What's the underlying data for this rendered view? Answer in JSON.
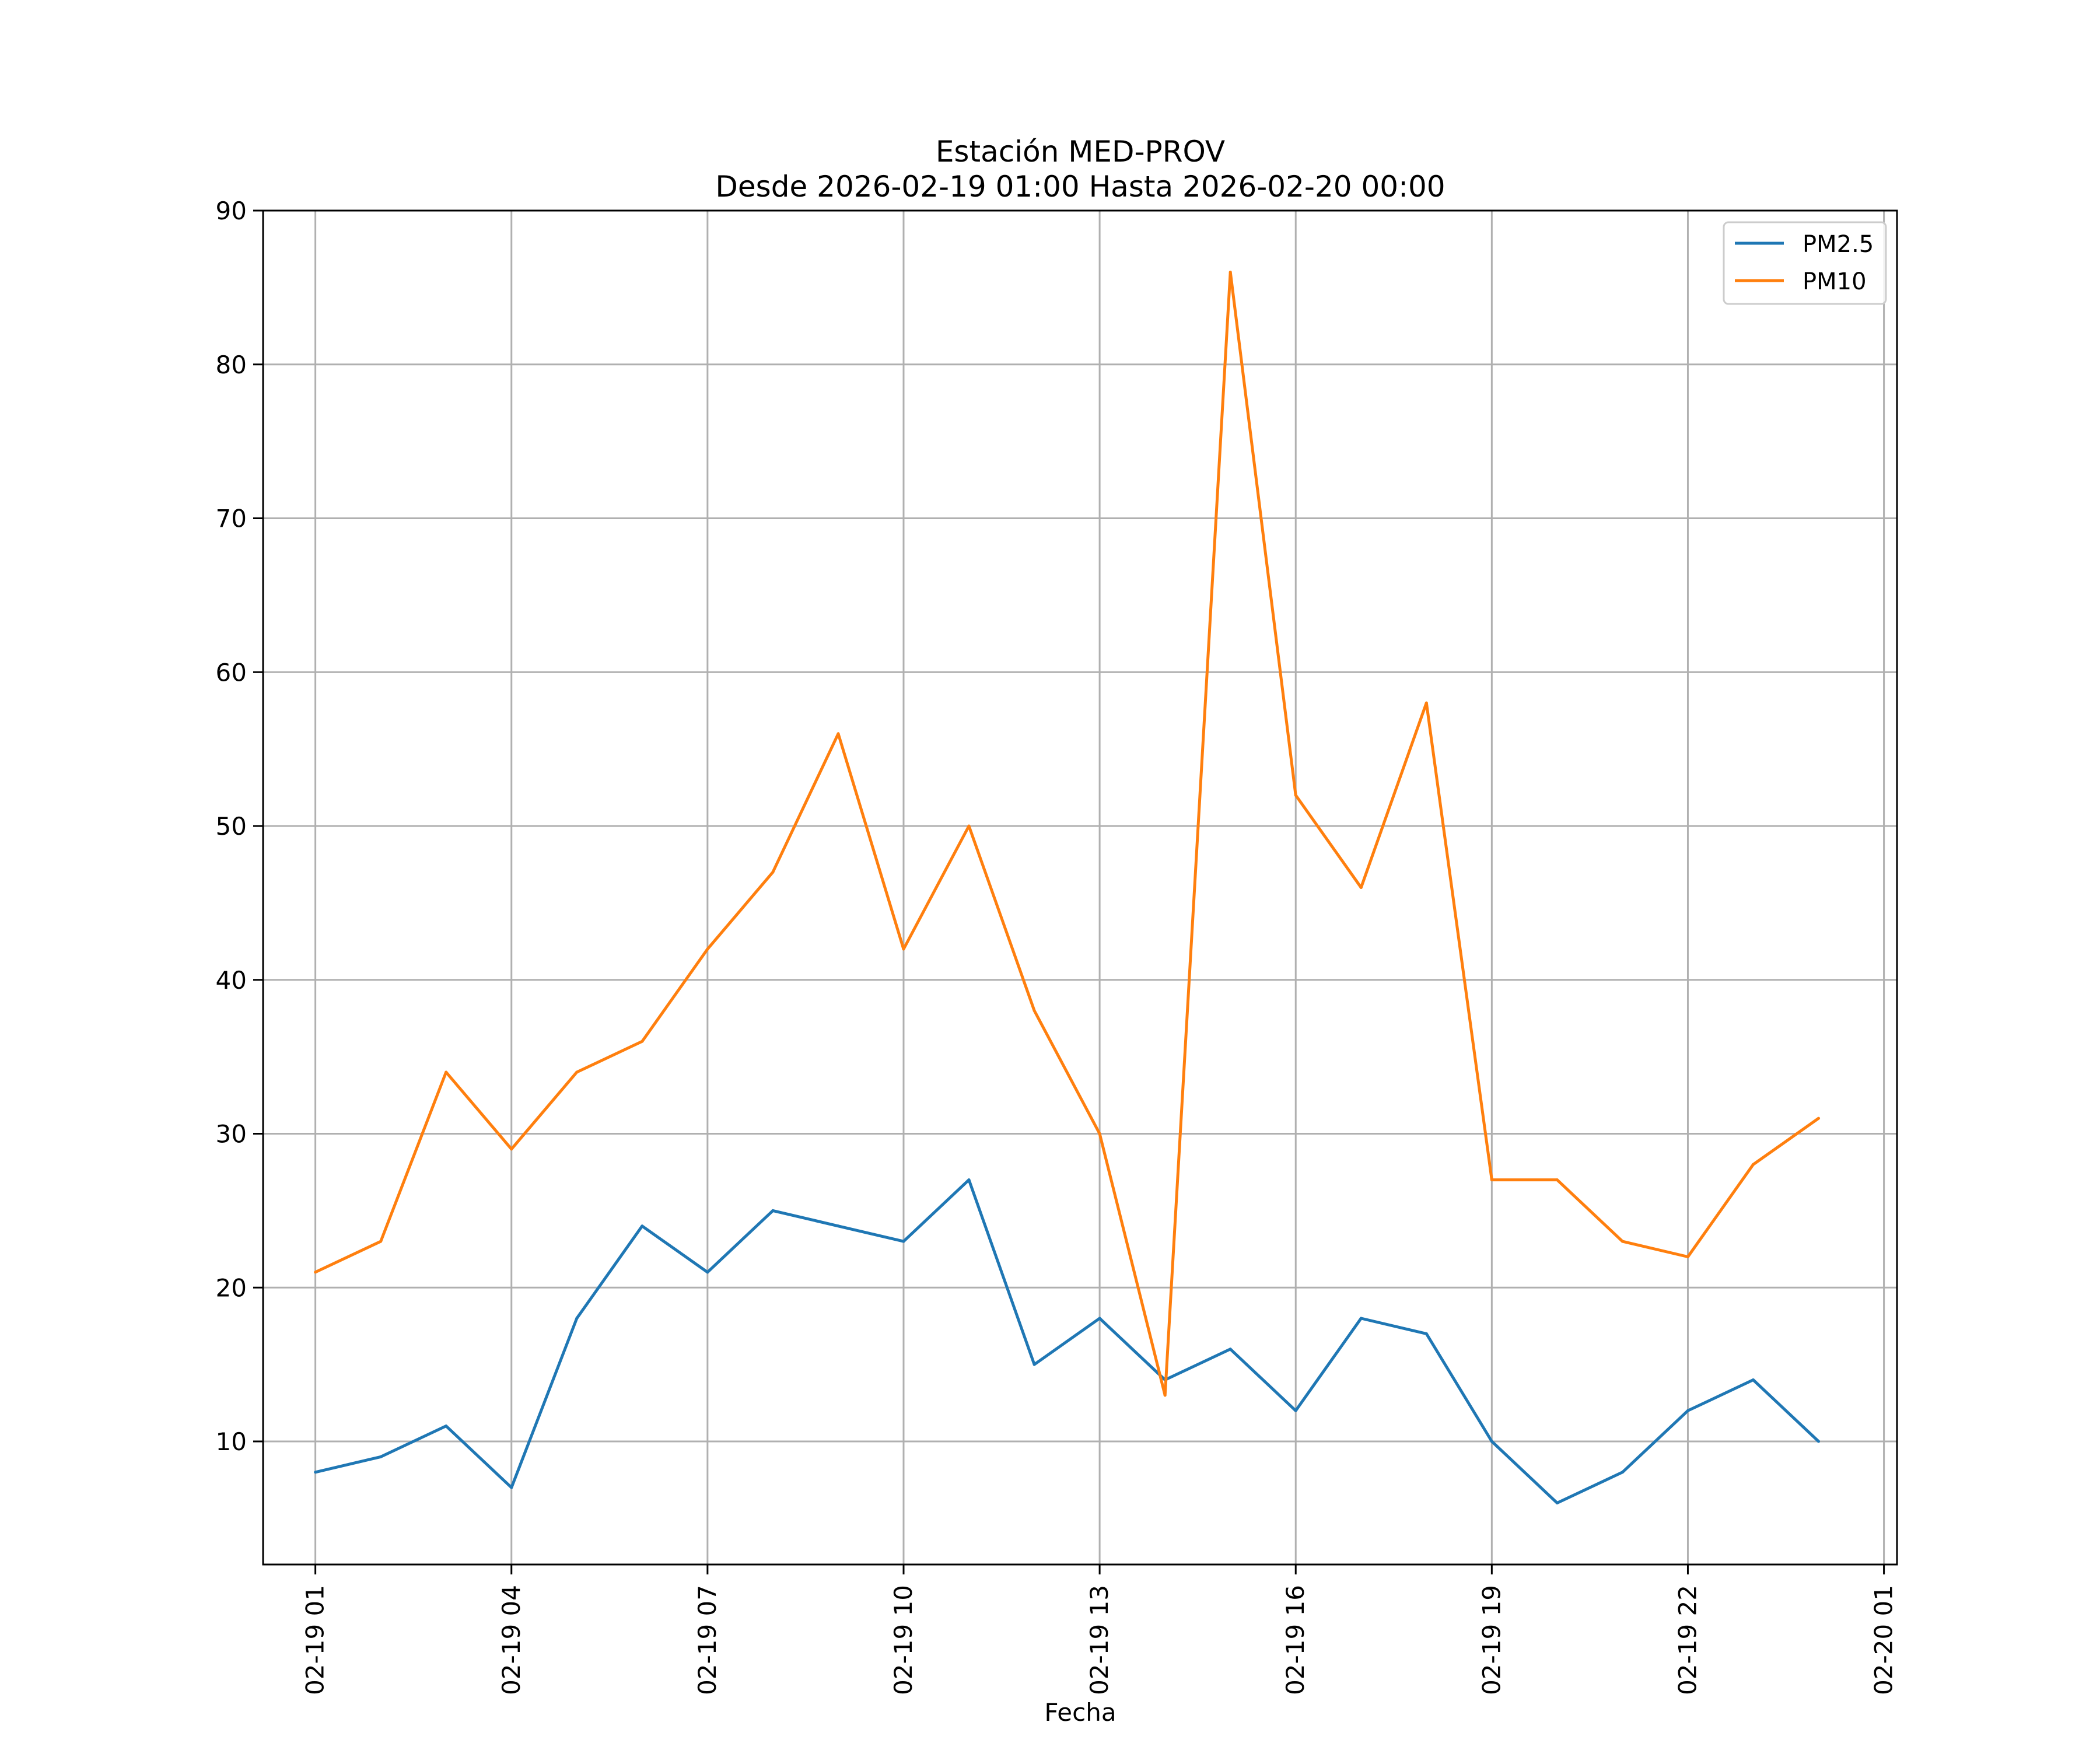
{
  "chart_data": {
    "type": "line",
    "title_line1": "Estación MED-PROV",
    "title_line2": "Desde 2026-02-19 01:00 Hasta 2026-02-20 00:00",
    "xlabel": "Fecha",
    "ylabel": "",
    "x_hours": [
      1,
      2,
      3,
      4,
      5,
      6,
      7,
      8,
      9,
      10,
      11,
      12,
      13,
      14,
      15,
      16,
      17,
      18,
      19,
      20,
      21,
      22,
      23,
      24
    ],
    "xlim": [
      0.2,
      25.2
    ],
    "ylim": [
      2,
      90
    ],
    "x_ticks": [
      {
        "hour": 1,
        "label": "02-19 01"
      },
      {
        "hour": 4,
        "label": "02-19 04"
      },
      {
        "hour": 7,
        "label": "02-19 07"
      },
      {
        "hour": 10,
        "label": "02-19 10"
      },
      {
        "hour": 13,
        "label": "02-19 13"
      },
      {
        "hour": 16,
        "label": "02-19 16"
      },
      {
        "hour": 19,
        "label": "02-19 19"
      },
      {
        "hour": 22,
        "label": "02-19 22"
      },
      {
        "hour": 25,
        "label": "02-20 01"
      }
    ],
    "y_ticks": [
      {
        "value": 10,
        "label": "10"
      },
      {
        "value": 20,
        "label": "20"
      },
      {
        "value": 30,
        "label": "30"
      },
      {
        "value": 40,
        "label": "40"
      },
      {
        "value": 50,
        "label": "50"
      },
      {
        "value": 60,
        "label": "60"
      },
      {
        "value": 70,
        "label": "70"
      },
      {
        "value": 80,
        "label": "80"
      },
      {
        "value": 90,
        "label": "90"
      }
    ],
    "grid": true,
    "legend_position": "top-right",
    "series": [
      {
        "name": "PM2.5",
        "color": "#1f77b4",
        "values": [
          8,
          9,
          11,
          7,
          18,
          24,
          21,
          25,
          24,
          23,
          27,
          15,
          18,
          14,
          16,
          12,
          18,
          17,
          10,
          6,
          8,
          12,
          14,
          10
        ]
      },
      {
        "name": "PM10",
        "color": "#ff7f0e",
        "values": [
          21,
          23,
          34,
          29,
          34,
          36,
          42,
          47,
          56,
          42,
          50,
          38,
          30,
          13,
          86,
          52,
          46,
          58,
          27,
          27,
          23,
          22,
          28,
          31
        ]
      }
    ]
  }
}
